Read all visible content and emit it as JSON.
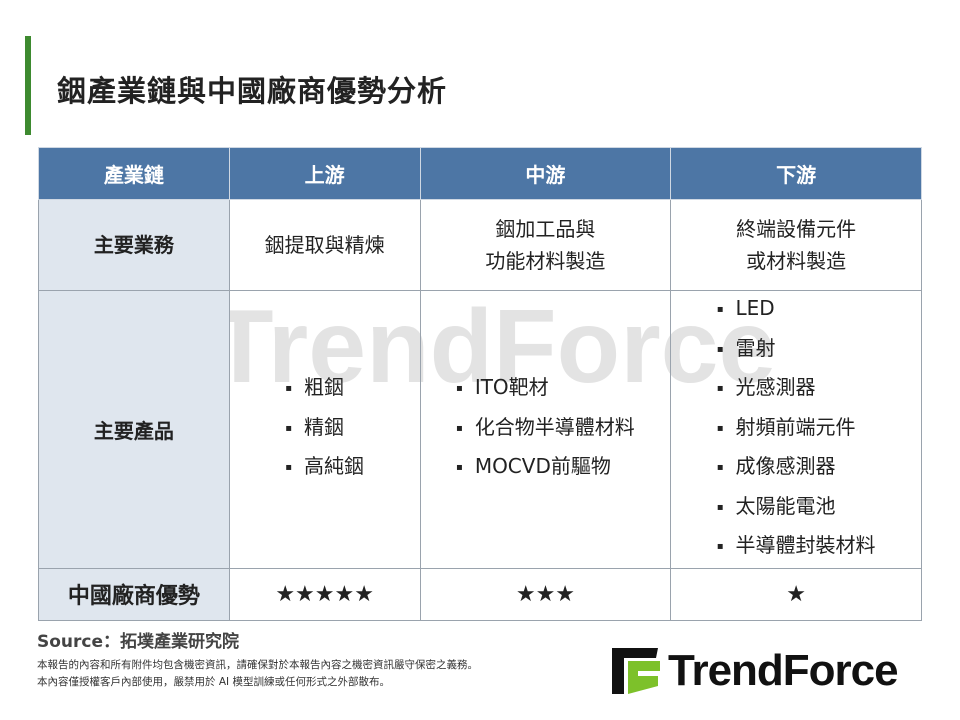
{
  "title": "銦產業鏈與中國廠商優勢分析",
  "table": {
    "headers": [
      "產業鏈",
      "上游",
      "中游",
      "下游"
    ],
    "rows": [
      {
        "label": "主要業務",
        "cells": [
          [
            "銦提取與精煉"
          ],
          [
            "銦加工品與",
            "功能材料製造"
          ],
          [
            "終端設備元件",
            "或材料製造"
          ]
        ]
      },
      {
        "label": "主要產品",
        "cells": [
          [
            "粗銦",
            "精銦",
            "高純銦"
          ],
          [
            "ITO靶材",
            "化合物半導體材料",
            "MOCVD前驅物"
          ],
          [
            "LED",
            "雷射",
            "光感測器",
            "射頻前端元件",
            "成像感測器",
            "太陽能電池",
            "半導體封裝材料"
          ]
        ]
      },
      {
        "label": "中國廠商優勢",
        "cells": [
          "★★★★★",
          "★★★",
          "★"
        ]
      }
    ]
  },
  "ratings": [
    5,
    3,
    1
  ],
  "source": "Source：拓墣產業研究院",
  "notes": [
    "本報告的內容和所有附件均包含機密資訊，請確保對於本報告內容之機密資訊嚴守保密之義務。",
    "本內容僅授權客戶內部使用，嚴禁用於 AI 模型訓練或任何形式之外部散布。"
  ],
  "logo": {
    "text": "TrendForce",
    "colors": {
      "green": "#7dc12a",
      "black": "#111111"
    }
  },
  "colors": {
    "header": "#4d76a5",
    "row_header": "#dfe6ee",
    "accent_bar": "#3d8a2f"
  }
}
